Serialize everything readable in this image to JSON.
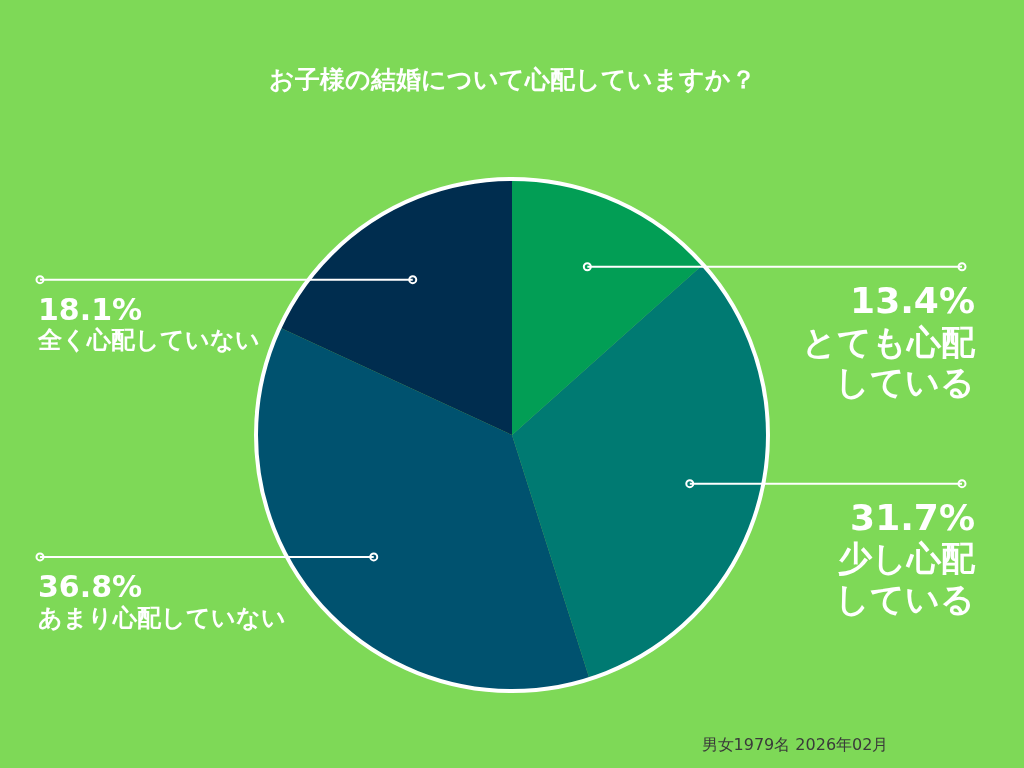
{
  "chart_data": {
    "type": "pie",
    "title": "お子様の結婚について心配していますか？",
    "categories": [
      "とても心配している",
      "少し心配している",
      "あまり心配していない",
      "全く心配していない"
    ],
    "values": [
      13.4,
      31.7,
      36.8,
      18.1
    ],
    "value_labels": [
      "13.4%",
      "31.7%",
      "36.8%",
      "18.1%"
    ],
    "colors": [
      "#029e55",
      "#007a72",
      "#00526f",
      "#002d4f"
    ],
    "annotations": [
      "男女1979名 2026年02月"
    ]
  }
}
